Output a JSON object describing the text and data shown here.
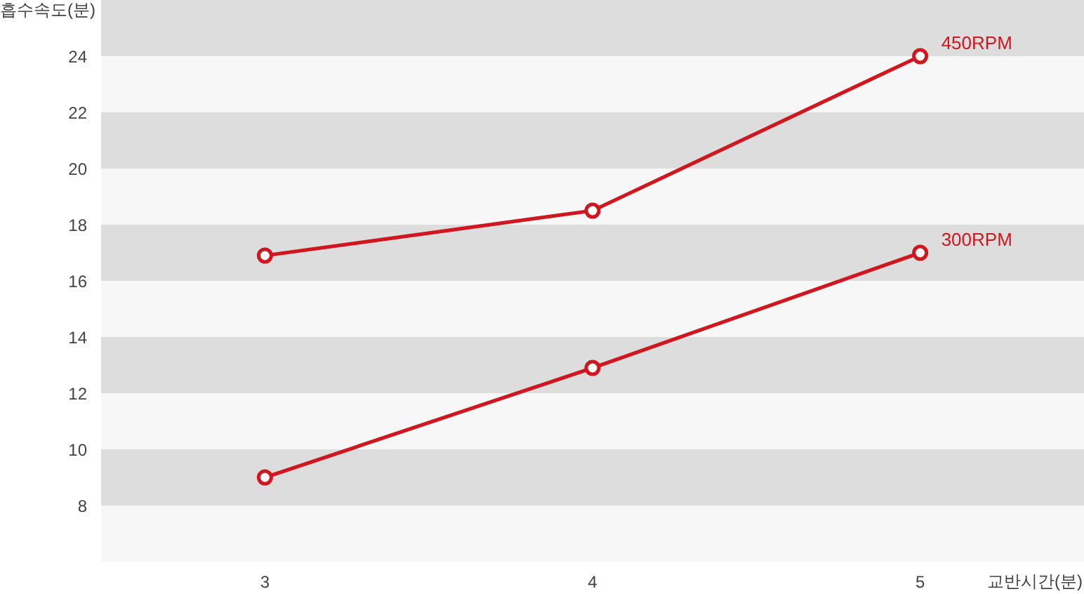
{
  "chart_data": {
    "type": "line",
    "xlabel": "교반시간(분)",
    "ylabel": "흡수속도(분)",
    "categories": [
      "3",
      "4",
      "5"
    ],
    "series": [
      {
        "name": "450RPM",
        "color": "#d0161e",
        "values": [
          16.9,
          18.5,
          24
        ]
      },
      {
        "name": "300RPM",
        "color": "#d0161e",
        "values": [
          9,
          12.9,
          17
        ]
      }
    ],
    "ylim": [
      6,
      26
    ],
    "yticks": [
      8,
      10,
      12,
      14,
      16,
      18,
      20,
      22,
      24
    ],
    "marker": "circle",
    "line_style": "solid",
    "bands": [
      {
        "axis": "y",
        "from": 24,
        "to": 26,
        "color": "#dddddd"
      },
      {
        "axis": "y",
        "from": 20,
        "to": 22,
        "color": "#dddddd"
      },
      {
        "axis": "y",
        "from": 16,
        "to": 18,
        "color": "#dddddd"
      },
      {
        "axis": "y",
        "from": 12,
        "to": 14,
        "color": "#dddddd"
      },
      {
        "axis": "y",
        "from": 8,
        "to": 10,
        "color": "#dddddd"
      }
    ]
  }
}
